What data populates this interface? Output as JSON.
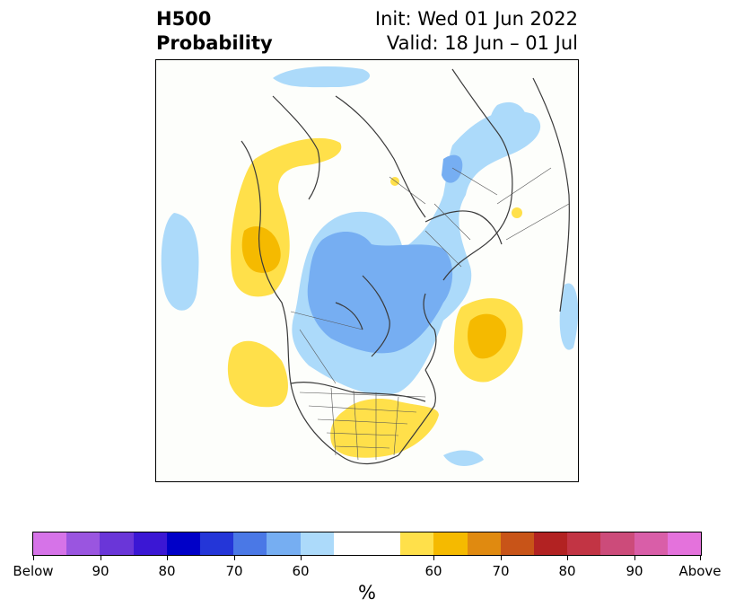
{
  "title": {
    "left_line1": "H500",
    "left_line2": "Probability",
    "right_line1": "Init: Wed 01 Jun 2022",
    "right_line2": "Valid: 18 Jun – 01 Jul"
  },
  "colorbar": {
    "label": "%",
    "colors": [
      "#d673e8",
      "#9a55e0",
      "#6a36d8",
      "#3b17d4",
      "#0000c8",
      "#2436d8",
      "#4a78e6",
      "#76aef2",
      "#acdafa",
      "#ffffff",
      "#ffffff",
      "#ffe04a",
      "#f5ba00",
      "#e08a10",
      "#c85418",
      "#b22222",
      "#c23444",
      "#cc4b7a",
      "#d95ea8",
      "#e472dc"
    ],
    "ticks": [
      {
        "label": "Below"
      },
      {
        "label": "90"
      },
      {
        "label": "80"
      },
      {
        "label": "70"
      },
      {
        "label": "60"
      },
      {
        "label": "60"
      },
      {
        "label": "70"
      },
      {
        "label": "80"
      },
      {
        "label": "90"
      },
      {
        "label": "Above"
      }
    ]
  },
  "map": {
    "projection": "north polar stereographic",
    "shading": {
      "below_light": "#acdafa",
      "below_medium": "#76aef2",
      "above_light": "#ffe04a",
      "above_medium": "#f5ba00"
    },
    "coastline_color": "#3a3a3a"
  }
}
